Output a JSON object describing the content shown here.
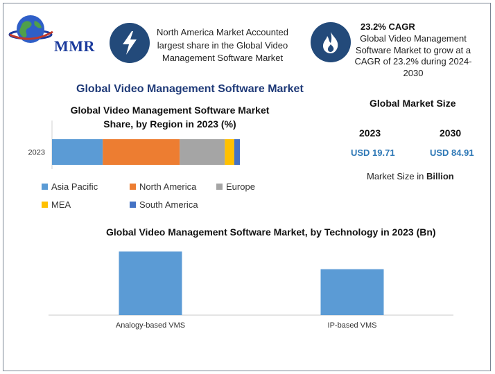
{
  "brand": {
    "logo_text": "MMR"
  },
  "info_north_america": {
    "icon": "lightning-bolt-icon",
    "text": "North America Market Accounted largest share in the Global Video Management Software Market"
  },
  "info_cagr": {
    "icon": "flame-icon",
    "title": "23.2% CAGR",
    "text": "Global Video Management Software Market to grow at a CAGR of 23.2% during 2024-2030"
  },
  "main_title": "Global Video Management Software Market",
  "market_size": {
    "title": "Global Market Size",
    "year_a": "2023",
    "year_b": "2030",
    "value_a": "USD 19.71",
    "value_b": "USD 84.91",
    "unit_prefix": "Market Size in ",
    "unit_bold": "Billion"
  },
  "colors": {
    "asia_pacific": "#5b9bd5",
    "north_america": "#ed7d31",
    "europe": "#a5a5a5",
    "mea": "#ffc000",
    "south_america": "#4472c4",
    "tech_bar": "#5b9bd5",
    "title_blue": "#1f3a78",
    "value_blue": "#2e78b6",
    "icon_bg": "#234a7a"
  },
  "chart_data": [
    {
      "type": "bar",
      "orientation": "horizontal-stacked",
      "title": "Global Video Management Software Market Share, by Region in 2023 (%)",
      "categories": [
        "2023"
      ],
      "series": [
        {
          "name": "Asia Pacific",
          "values": [
            27
          ]
        },
        {
          "name": "North America",
          "values": [
            41
          ]
        },
        {
          "name": "Europe",
          "values": [
            24
          ]
        },
        {
          "name": "MEA",
          "values": [
            5
          ]
        },
        {
          "name": "South America",
          "values": [
            3
          ]
        }
      ],
      "xlim": [
        0,
        100
      ],
      "legend": "bottom",
      "grid": false
    },
    {
      "type": "bar",
      "title": "Global Video Management Software Market, by Technology in 2023 (Bn)",
      "categories": [
        "Analogy-based VMS",
        "IP-based VMS"
      ],
      "values": [
        10.8,
        7.8
      ],
      "ylim": [
        0,
        12
      ],
      "grid": false
    }
  ]
}
